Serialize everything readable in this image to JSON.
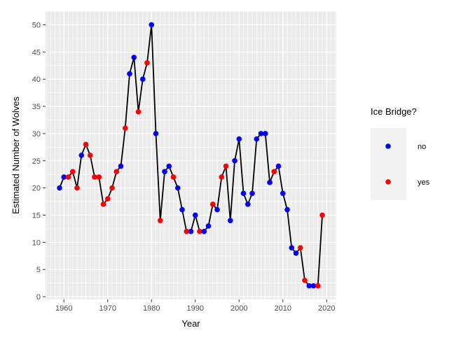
{
  "chart_data": {
    "type": "line",
    "title": "",
    "xlabel": "Year",
    "ylabel": "Estimated Number of Wolves",
    "xlim": [
      1955.8,
      2022.2
    ],
    "ylim": [
      -0.5,
      52.5
    ],
    "x_ticks": [
      1960,
      1970,
      1980,
      1990,
      2000,
      2010,
      2020
    ],
    "x_tick_labels": [
      "1960",
      "1970",
      "1980",
      "1990",
      "2000",
      "2010",
      "2020"
    ],
    "y_ticks": [
      0,
      5,
      10,
      15,
      20,
      25,
      30,
      35,
      40,
      45,
      50
    ],
    "y_tick_labels": [
      "0",
      "5",
      "10",
      "15",
      "20",
      "25",
      "30",
      "35",
      "40",
      "45",
      "50"
    ],
    "grid": true,
    "line_color": "#000000",
    "panel_background": "#ebebeb",
    "legend": {
      "title": "Ice Bridge?",
      "position": "right",
      "entries": [
        {
          "label": "no",
          "color": "#0000ff"
        },
        {
          "label": "yes",
          "color": "#ff0000"
        }
      ]
    },
    "series": [
      {
        "x": [
          1959,
          1960,
          1961,
          1962,
          1963,
          1964,
          1965,
          1966,
          1967,
          1968,
          1969,
          1970,
          1971,
          1972,
          1973,
          1974,
          1975,
          1976,
          1977,
          1978,
          1979,
          1980,
          1981,
          1982,
          1983,
          1984,
          1985,
          1986,
          1987,
          1988,
          1989,
          1990,
          1991,
          1992,
          1993,
          1994,
          1995,
          1996,
          1997,
          1998,
          1999,
          2000,
          2001,
          2002,
          2003,
          2004,
          2005,
          2006,
          2007,
          2008,
          2009,
          2010,
          2011,
          2012,
          2013,
          2014,
          2015,
          2016,
          2017,
          2018,
          2019
        ],
        "y": [
          20,
          22,
          22,
          23,
          20,
          26,
          28,
          26,
          22,
          22,
          17,
          18,
          20,
          23,
          24,
          31,
          41,
          44,
          34,
          40,
          43,
          50,
          30,
          14,
          23,
          24,
          22,
          20,
          16,
          12,
          12,
          15,
          12,
          12,
          13,
          17,
          16,
          22,
          24,
          14,
          25,
          29,
          19,
          17,
          19,
          29,
          30,
          30,
          21,
          23,
          24,
          19,
          16,
          9,
          8,
          9,
          3,
          2,
          2,
          2,
          15
        ],
        "ice_bridge": [
          "no",
          "no",
          "yes",
          "yes",
          "yes",
          "no",
          "yes",
          "yes",
          "yes",
          "yes",
          "yes",
          "yes",
          "yes",
          "yes",
          "no",
          "yes",
          "no",
          "no",
          "yes",
          "no",
          "yes",
          "no",
          "no",
          "yes",
          "no",
          "no",
          "yes",
          "no",
          "no",
          "yes",
          "no",
          "no",
          "yes",
          "no",
          "no",
          "yes",
          "no",
          "yes",
          "yes",
          "no",
          "no",
          "no",
          "no",
          "no",
          "no",
          "no",
          "no",
          "no",
          "no",
          "yes",
          "no",
          "no",
          "no",
          "no",
          "no",
          "yes",
          "yes",
          "no",
          "no",
          "yes",
          "yes"
        ]
      }
    ]
  }
}
